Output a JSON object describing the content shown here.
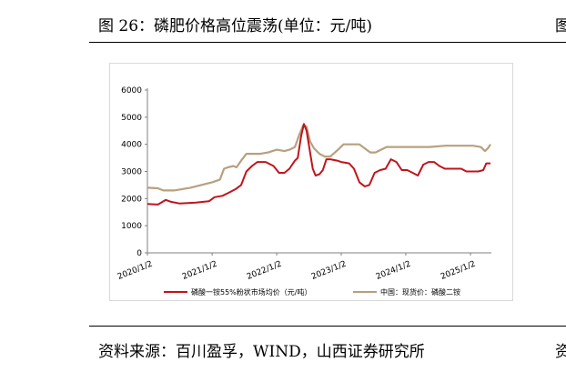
{
  "figure_title": "图 26：磷肥价格高位震荡(单位：元/吨)",
  "right_edge_fragment": "图",
  "source_text": "资料来源：百川盈孚，WIND，山西证券研究所",
  "right_edge_fragment_bottom": "资",
  "colors": {
    "series1": "#c0141c",
    "series2": "#b8a07e",
    "axis": "#808080"
  },
  "chart_data": {
    "type": "line",
    "title": "",
    "xlabel": "",
    "ylabel": "",
    "ylim": [
      0,
      6000
    ],
    "yticks": [
      0,
      1000,
      2000,
      3000,
      4000,
      5000,
      6000
    ],
    "xlim": [
      "2020-01-02",
      "2025-04-30"
    ],
    "xticks": [
      "2020/1/2",
      "2021/1/2",
      "2022/1/2",
      "2023/1/2",
      "2024/1/2",
      "2025/1/2"
    ],
    "grid": false,
    "legend": "bottom",
    "series": [
      {
        "name": "磷酸一铵55%粉状市场均价（元/吨）",
        "color": "#c0141c",
        "points": [
          [
            "2020-01-02",
            1800
          ],
          [
            "2020-03-01",
            1780
          ],
          [
            "2020-04-15",
            1950
          ],
          [
            "2020-05-15",
            1880
          ],
          [
            "2020-07-01",
            1820
          ],
          [
            "2020-10-01",
            1850
          ],
          [
            "2020-12-15",
            1900
          ],
          [
            "2021-01-15",
            2050
          ],
          [
            "2021-03-01",
            2100
          ],
          [
            "2021-04-01",
            2200
          ],
          [
            "2021-05-15",
            2350
          ],
          [
            "2021-06-15",
            2500
          ],
          [
            "2021-07-15",
            3000
          ],
          [
            "2021-08-15",
            3200
          ],
          [
            "2021-09-15",
            3350
          ],
          [
            "2021-11-01",
            3350
          ],
          [
            "2021-12-15",
            3200
          ],
          [
            "2022-01-15",
            2950
          ],
          [
            "2022-02-15",
            2950
          ],
          [
            "2022-03-15",
            3100
          ],
          [
            "2022-04-15",
            3400
          ],
          [
            "2022-05-01",
            3500
          ],
          [
            "2022-05-20",
            4300
          ],
          [
            "2022-06-05",
            4750
          ],
          [
            "2022-06-20",
            4500
          ],
          [
            "2022-07-05",
            3900
          ],
          [
            "2022-07-25",
            3100
          ],
          [
            "2022-08-10",
            2850
          ],
          [
            "2022-09-01",
            2900
          ],
          [
            "2022-09-20",
            3050
          ],
          [
            "2022-10-10",
            3450
          ],
          [
            "2022-11-01",
            3450
          ],
          [
            "2022-12-10",
            3400
          ],
          [
            "2023-01-02",
            3350
          ],
          [
            "2023-02-15",
            3300
          ],
          [
            "2023-03-15",
            3100
          ],
          [
            "2023-04-15",
            2600
          ],
          [
            "2023-05-15",
            2450
          ],
          [
            "2023-06-10",
            2500
          ],
          [
            "2023-07-10",
            2950
          ],
          [
            "2023-08-10",
            3050
          ],
          [
            "2023-09-10",
            3100
          ],
          [
            "2023-10-10",
            3450
          ],
          [
            "2023-11-10",
            3350
          ],
          [
            "2023-12-10",
            3050
          ],
          [
            "2024-01-10",
            3050
          ],
          [
            "2024-02-10",
            2950
          ],
          [
            "2024-03-10",
            2850
          ],
          [
            "2024-04-10",
            3250
          ],
          [
            "2024-05-10",
            3350
          ],
          [
            "2024-06-10",
            3350
          ],
          [
            "2024-07-10",
            3200
          ],
          [
            "2024-08-10",
            3100
          ],
          [
            "2024-09-10",
            3100
          ],
          [
            "2024-10-10",
            3100
          ],
          [
            "2024-11-10",
            3100
          ],
          [
            "2024-12-10",
            3000
          ],
          [
            "2025-01-15",
            3000
          ],
          [
            "2025-02-15",
            3000
          ],
          [
            "2025-03-15",
            3050
          ],
          [
            "2025-04-01",
            3300
          ],
          [
            "2025-04-25",
            3300
          ]
        ]
      },
      {
        "name": "中国：现货价：磷酸二铵",
        "color": "#b8a07e",
        "points": [
          [
            "2020-01-02",
            2400
          ],
          [
            "2020-03-01",
            2380
          ],
          [
            "2020-04-01",
            2300
          ],
          [
            "2020-06-01",
            2300
          ],
          [
            "2020-09-01",
            2400
          ],
          [
            "2020-11-01",
            2500
          ],
          [
            "2021-01-02",
            2600
          ],
          [
            "2021-02-15",
            2700
          ],
          [
            "2021-03-10",
            3100
          ],
          [
            "2021-04-01",
            3150
          ],
          [
            "2021-05-01",
            3200
          ],
          [
            "2021-05-20",
            3150
          ],
          [
            "2021-06-15",
            3400
          ],
          [
            "2021-07-15",
            3650
          ],
          [
            "2021-08-15",
            3650
          ],
          [
            "2021-10-01",
            3650
          ],
          [
            "2021-11-15",
            3700
          ],
          [
            "2022-01-02",
            3800
          ],
          [
            "2022-02-15",
            3750
          ],
          [
            "2022-03-15",
            3800
          ],
          [
            "2022-04-15",
            3900
          ],
          [
            "2022-05-10",
            4350
          ],
          [
            "2022-06-01",
            4700
          ],
          [
            "2022-06-20",
            4650
          ],
          [
            "2022-07-10",
            4100
          ],
          [
            "2022-08-01",
            3850
          ],
          [
            "2022-09-01",
            3650
          ],
          [
            "2022-10-01",
            3550
          ],
          [
            "2022-11-01",
            3550
          ],
          [
            "2022-12-15",
            3800
          ],
          [
            "2023-01-15",
            4000
          ],
          [
            "2023-02-15",
            4000
          ],
          [
            "2023-04-15",
            4000
          ],
          [
            "2023-05-15",
            3850
          ],
          [
            "2023-06-15",
            3700
          ],
          [
            "2023-07-15",
            3700
          ],
          [
            "2023-08-15",
            3800
          ],
          [
            "2023-09-15",
            3900
          ],
          [
            "2023-11-15",
            3900
          ],
          [
            "2024-02-15",
            3900
          ],
          [
            "2024-05-15",
            3900
          ],
          [
            "2024-08-15",
            3950
          ],
          [
            "2024-11-15",
            3950
          ],
          [
            "2025-01-15",
            3950
          ],
          [
            "2025-03-01",
            3900
          ],
          [
            "2025-03-25",
            3750
          ],
          [
            "2025-04-10",
            3850
          ],
          [
            "2025-04-25",
            4000
          ]
        ]
      }
    ]
  }
}
